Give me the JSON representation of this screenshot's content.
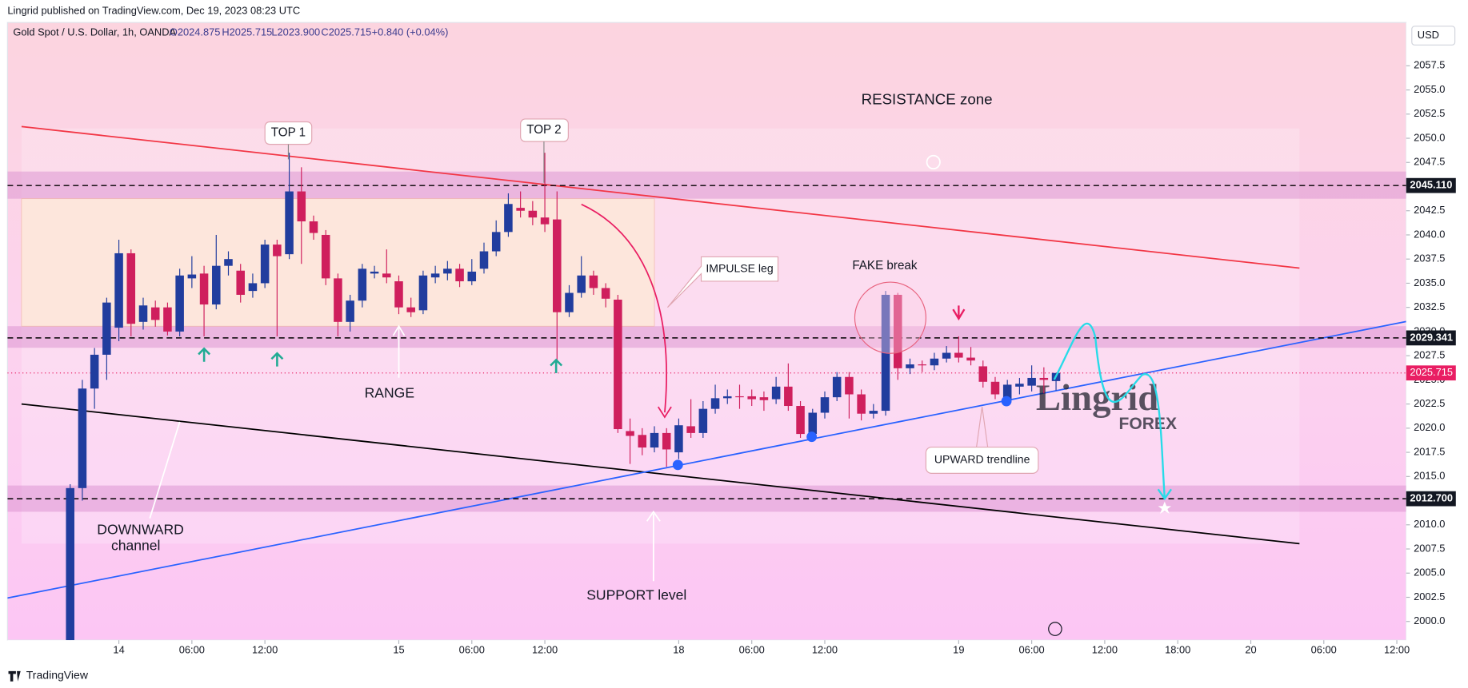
{
  "header": {
    "published": "Lingrid published on TradingView.com, Dec 19, 2023 08:23 UTC",
    "symbol": "Gold Spot / U.S. Dollar, 1h, OANDA",
    "open": "O2024.875",
    "high": "H2025.715",
    "low": "L2023.900",
    "close": "C2025.715",
    "change": "+0.840 (+0.04%)"
  },
  "currency": "USD",
  "footer": "TradingView",
  "annotations": {
    "resistance": "RESISTANCE zone",
    "top1": "TOP 1",
    "top2": "TOP 2",
    "impulse": "IMPULSE leg",
    "fake": "FAKE break",
    "range": "RANGE",
    "downward1": "DOWNWARD",
    "downward2": "channel",
    "support": "SUPPORT level",
    "upward": "UPWARD trendline",
    "watermark1": "Lingrid",
    "watermark2": "FOREX"
  },
  "chart_data": {
    "type": "candlestick",
    "up_color": "#213d9e",
    "down_color": "#cf1f5d",
    "x": [
      0,
      1,
      2,
      3,
      4,
      5,
      6,
      7,
      8,
      9,
      10,
      11,
      12,
      13,
      14,
      15,
      16,
      17,
      18,
      19,
      20,
      21,
      22,
      23,
      24,
      25,
      26,
      27,
      28,
      29,
      30,
      31,
      32,
      33,
      34,
      35,
      36,
      37,
      38,
      39,
      40,
      41,
      42,
      43,
      44,
      45,
      46,
      47,
      48,
      49,
      50,
      51,
      52,
      53,
      54,
      55,
      56,
      57,
      58,
      59,
      60,
      61,
      62,
      63,
      64,
      65,
      66,
      67,
      68,
      69,
      70,
      71,
      72,
      73,
      74,
      75,
      76,
      77,
      78,
      79,
      80,
      81
    ],
    "open": [
      1997.5,
      2013.8,
      2024.1,
      2027.6,
      2030.4,
      2038.1,
      2031.0,
      2032.5,
      2032.5,
      2030.0,
      2035.5,
      2036.0,
      2032.8,
      2036.8,
      2036.3,
      2034.2,
      2035.0,
      2039.0,
      2038.0,
      2044.5,
      2041.4,
      2040.0,
      2035.5,
      2031.0,
      2033.2,
      2036.0,
      2036.0,
      2035.2,
      2032.5,
      2032.2,
      2035.6,
      2036.0,
      2036.5,
      2035.2,
      2036.5,
      2038.3,
      2040.3,
      2042.8,
      2042.5,
      2041.8,
      2041.6,
      2032.0,
      2034.0,
      2035.8,
      2034.5,
      2033.3,
      2019.7,
      2019.3,
      2018.0,
      2019.5,
      2017.5,
      2020.2,
      2019.5,
      2022.0,
      2023.1,
      2023.3,
      2023.3,
      2023.2,
      2023.0,
      2024.3,
      2022.3,
      2019.4,
      2021.6,
      2023.2,
      2025.3,
      2023.5,
      2021.5,
      2021.8,
      2033.8,
      2026.2,
      2026.6,
      2026.5,
      2027.2,
      2027.8,
      2027.3,
      2026.4,
      2024.8,
      2023.0,
      2024.3,
      2024.4,
      2025.2,
      2024.875
    ],
    "high": [
      2014.2,
      2025.0,
      2028.3,
      2033.5,
      2039.5,
      2038.5,
      2033.5,
      2033.2,
      2033.0,
      2036.5,
      2037.8,
      2036.8,
      2040.0,
      2038.3,
      2037.0,
      2036.0,
      2039.5,
      2039.5,
      2048.5,
      2047.0,
      2042.0,
      2040.5,
      2036.0,
      2033.8,
      2037.0,
      2036.8,
      2038.5,
      2035.8,
      2033.5,
      2036.3,
      2036.8,
      2037.3,
      2037.0,
      2037.5,
      2039.2,
      2041.5,
      2044.3,
      2044.5,
      2043.5,
      2048.5,
      2044.5,
      2034.8,
      2037.8,
      2036.3,
      2035.0,
      2033.8,
      2021.0,
      2020.0,
      2020.2,
      2020.0,
      2021.0,
      2023.0,
      2022.8,
      2024.5,
      2024.0,
      2024.5,
      2024.0,
      2023.8,
      2025.3,
      2026.7,
      2022.8,
      2022.0,
      2023.8,
      2025.8,
      2025.8,
      2024.0,
      2022.5,
      2034.2,
      2034.0,
      2027.2,
      2027.0,
      2027.8,
      2028.5,
      2029.5,
      2028.4,
      2027.0,
      2025.3,
      2025.0,
      2025.2,
      2026.5,
      2026.3,
      2025.715
    ],
    "low": [
      1996.5,
      2012.5,
      2022.0,
      2025.0,
      2029.0,
      2029.5,
      2030.2,
      2030.5,
      2029.6,
      2029.5,
      2034.5,
      2029.5,
      2032.3,
      2035.8,
      2033.0,
      2033.5,
      2034.5,
      2029.5,
      2037.5,
      2037.0,
      2039.5,
      2034.8,
      2029.5,
      2030.0,
      2032.5,
      2035.5,
      2035.0,
      2031.8,
      2031.5,
      2031.8,
      2035.0,
      2035.3,
      2034.6,
      2034.8,
      2036.0,
      2037.8,
      2039.8,
      2041.8,
      2041.0,
      2040.3,
      2027.0,
      2031.5,
      2033.5,
      2033.8,
      2032.5,
      2019.5,
      2016.3,
      2017.2,
      2017.5,
      2016.0,
      2016.8,
      2019.0,
      2019.0,
      2021.5,
      2022.5,
      2022.0,
      2022.3,
      2021.8,
      2022.5,
      2021.8,
      2019.0,
      2019.0,
      2021.0,
      2022.8,
      2021.0,
      2020.8,
      2021.0,
      2021.3,
      2025.0,
      2025.6,
      2025.8,
      2026.0,
      2026.8,
      2026.8,
      2026.5,
      2024.2,
      2023.0,
      2022.5,
      2023.5,
      2023.8,
      2023.6,
      2023.9
    ],
    "close": [
      2013.8,
      2024.1,
      2027.6,
      2033.0,
      2038.1,
      2030.8,
      2032.7,
      2031.2,
      2030.0,
      2035.8,
      2035.9,
      2032.8,
      2036.8,
      2037.5,
      2033.8,
      2035.0,
      2039.0,
      2037.8,
      2044.5,
      2041.4,
      2040.2,
      2035.5,
      2031.0,
      2033.2,
      2036.5,
      2036.2,
      2035.6,
      2032.5,
      2032.0,
      2035.8,
      2036.0,
      2036.5,
      2035.2,
      2036.2,
      2038.3,
      2040.3,
      2043.2,
      2042.5,
      2041.8,
      2041.1,
      2032.0,
      2034.0,
      2035.8,
      2034.5,
      2033.4,
      2019.9,
      2019.2,
      2018.0,
      2019.5,
      2017.8,
      2020.3,
      2019.5,
      2022.0,
      2023.1,
      2023.3,
      2023.2,
      2023.0,
      2022.9,
      2024.3,
      2022.3,
      2019.4,
      2021.6,
      2023.2,
      2025.3,
      2023.5,
      2021.5,
      2021.8,
      2033.8,
      2026.2,
      2026.6,
      2026.5,
      2027.2,
      2027.8,
      2027.3,
      2027.0,
      2024.8,
      2023.5,
      2024.5,
      2024.6,
      2025.2,
      2025.0,
      2025.715
    ],
    "xlim": [
      -5.15,
      109.77
    ],
    "xticks": [
      {
        "value": 4,
        "label": "14"
      },
      {
        "value": 10,
        "label": "06:00"
      },
      {
        "value": 16,
        "label": "12:00"
      },
      {
        "value": 27,
        "label": "15"
      },
      {
        "value": 33,
        "label": "06:00"
      },
      {
        "value": 39,
        "label": "12:00"
      },
      {
        "value": 50,
        "label": "18"
      },
      {
        "value": 56,
        "label": "06:00"
      },
      {
        "value": 62,
        "label": "12:00"
      },
      {
        "value": 73,
        "label": "19"
      },
      {
        "value": 79,
        "label": "06:00"
      },
      {
        "value": 85,
        "label": "12:00"
      },
      {
        "value": 91,
        "label": "18:00"
      },
      {
        "value": 97,
        "label": "20"
      },
      {
        "value": 103,
        "label": "06:00"
      },
      {
        "value": 109,
        "label": "12:00"
      }
    ],
    "ylim": [
      1998.06,
      2061.98
    ],
    "yticks": [
      {
        "value": 2000,
        "label": "2000.0"
      },
      {
        "value": 2002.5,
        "label": "2002.5"
      },
      {
        "value": 2005,
        "label": "2005.0"
      },
      {
        "value": 2007.5,
        "label": "2007.5"
      },
      {
        "value": 2010,
        "label": "2010.0"
      },
      {
        "value": 2012.5,
        "label": "2012.5"
      },
      {
        "value": 2015,
        "label": "2015.0"
      },
      {
        "value": 2017.5,
        "label": "2017.5"
      },
      {
        "value": 2020,
        "label": "2020.0"
      },
      {
        "value": 2022.5,
        "label": "2022.5"
      },
      {
        "value": 2025,
        "label": "2025.0"
      },
      {
        "value": 2027.5,
        "label": "2027.5"
      },
      {
        "value": 2030,
        "label": "2030.0"
      },
      {
        "value": 2032.5,
        "label": "2032.5"
      },
      {
        "value": 2035,
        "label": "2035.0"
      },
      {
        "value": 2037.5,
        "label": "2037.5"
      },
      {
        "value": 2040,
        "label": "2040.0"
      },
      {
        "value": 2042.5,
        "label": "2042.5"
      },
      {
        "value": 2045,
        "label": "2045.0"
      },
      {
        "value": 2047.5,
        "label": "2047.5"
      },
      {
        "value": 2050,
        "label": "2050.0"
      },
      {
        "value": 2052.5,
        "label": "2052.5"
      },
      {
        "value": 2055,
        "label": "2055.0"
      },
      {
        "value": 2057.5,
        "label": "2057.5"
      }
    ],
    "levels": [
      {
        "value": 2045.11,
        "label": "2045.110"
      },
      {
        "value": 2029.341,
        "label": "2029.341"
      },
      {
        "value": 2012.7,
        "label": "2012.700"
      }
    ],
    "last_price": {
      "value": 2025.715,
      "label": "2025.715"
    }
  }
}
